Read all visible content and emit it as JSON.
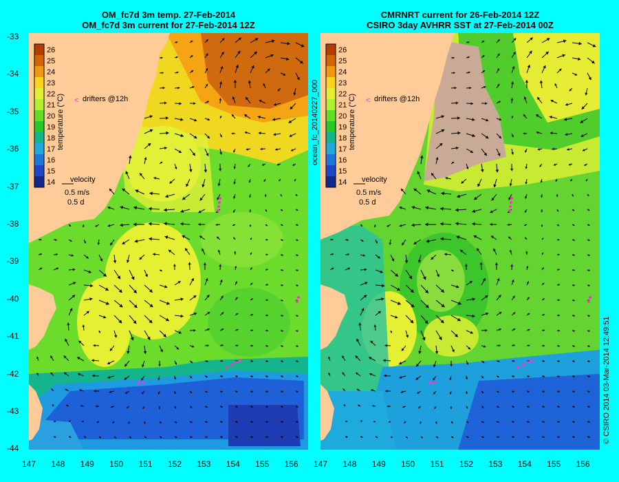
{
  "left_panel": {
    "title_line1": "OM_fc7d 3m temp. 27-Feb-2014",
    "title_line2": "OM_fc7d 3m current for 27-Feb-2014 12Z"
  },
  "right_panel": {
    "title_line1": "CMRNRT current for 26-Feb-2014 12Z",
    "title_line2": "CSIRO 3day AVHRR SST at 27-Feb-2014 00Z"
  },
  "colorbar": {
    "label": "temperature (°C)",
    "ticks": [
      "26",
      "25",
      "24",
      "23",
      "22",
      "21",
      "20",
      "19",
      "18",
      "17",
      "16",
      "15",
      "14"
    ],
    "colors": [
      "#b43c00",
      "#d2640a",
      "#f09a14",
      "#ffd21e",
      "#e6f032",
      "#b4ee32",
      "#64dc28",
      "#28c82a",
      "#14b48c",
      "#1eaadc",
      "#1e78dc",
      "#1e46c8",
      "#14288c"
    ]
  },
  "legend": {
    "drifters": "drifters @12h",
    "velocity": "velocity",
    "speed": "0.5 m/s",
    "duration": "0.5 d"
  },
  "axes": {
    "y_ticks": [
      "-33",
      "-34",
      "-35",
      "-36",
      "-37",
      "-38",
      "-39",
      "-40",
      "-41",
      "-42",
      "-43",
      "-44"
    ],
    "x_ticks": [
      "147",
      "148",
      "149",
      "150",
      "151",
      "152",
      "153",
      "154",
      "155",
      "156"
    ]
  },
  "side_label": "ocean_fc_20140227_000",
  "credit": "© CSIRO 2014   03-Mar-2014 12:49:51",
  "colors": {
    "background": "#00ffff",
    "land": "#ffcc99",
    "cloud": "#c8aa96"
  }
}
